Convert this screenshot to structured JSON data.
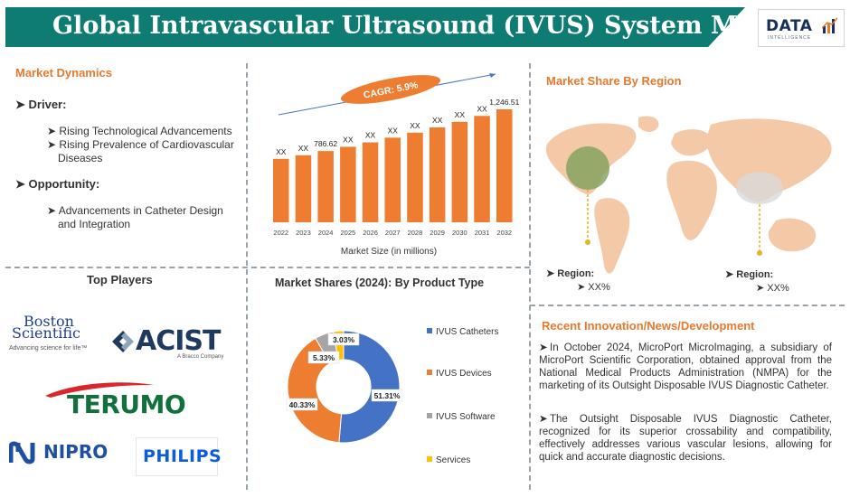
{
  "header": {
    "title": "Global Intravascular Ultrasound (IVUS) System Market",
    "logo_text": "DATA",
    "logo_sub": "INTELLIGENCE"
  },
  "dynamics": {
    "title": "Market Dynamics",
    "driver_label": "Driver:",
    "drivers": [
      "Rising Technological Advancements",
      "Rising Prevalence of Cardiovascular",
      "Diseases"
    ],
    "opportunity_label": "Opportunity:",
    "opportunities": [
      "Advancements in Catheter Design",
      "and Integration"
    ]
  },
  "market_size_chart": {
    "type": "bar",
    "cagr_label": "CAGR: 5.9%",
    "xlabel": "Market Size (in millions)",
    "categories": [
      "2022",
      "2023",
      "2024",
      "2025",
      "2026",
      "2027",
      "2028",
      "2029",
      "2030",
      "2031",
      "2032"
    ],
    "values": [
      700,
      740,
      786.62,
      833,
      882,
      934,
      989,
      1047,
      1109,
      1174,
      1246.51
    ],
    "data_labels": [
      "XX",
      "XX",
      "786.62",
      "XX",
      "XX",
      "XX",
      "XX",
      "XX",
      "XX",
      "XX",
      "1,246.51"
    ],
    "color": "#ee7d31"
  },
  "region": {
    "title": "Market Share By Region",
    "items": [
      {
        "label": "Region:",
        "value": "XX%"
      },
      {
        "label": "Region:",
        "value": "XX%"
      }
    ]
  },
  "players": {
    "title": "Top Players",
    "boston_line1": "Boston",
    "boston_line2": "Scientific",
    "boston_tag": "Advancing science for life™",
    "acist": "ACIST",
    "acist_tag": "A Bracco Company",
    "terumo": "TERUMO",
    "nipro": "NIPRO",
    "philips": "PHILIPS"
  },
  "chart_data": {
    "type": "pie",
    "title": "Market Shares (2024): By Product Type",
    "categories": [
      "IVUS Catheters",
      "IVUS Devices",
      "IVUS Software",
      "Services"
    ],
    "values": [
      51.31,
      40.33,
      5.33,
      3.03
    ],
    "data_labels": [
      "51.31%",
      "40.33%",
      "5.33%",
      "3.03%"
    ],
    "colors": [
      "#4472c4",
      "#ed7d31",
      "#a5a5a5",
      "#ffc000"
    ],
    "donut": true,
    "legend": "right"
  },
  "news": {
    "title": "Recent Innovation/News/Development",
    "items": [
      "In October 2024, MicroPort MicroImaging, a subsidiary of MicroPort Scientific Corporation, obtained approval from the National Medical Products Administration (NMPA) for the marketing of its Outsight Disposable IVUS Diagnostic Catheter.",
      "The Outsight Disposable IVUS Diagnostic Catheter, recognized for its superior crossability and compatibility, effectively addresses various vascular lesions, allowing for quick and accurate diagnostic decisions."
    ]
  }
}
